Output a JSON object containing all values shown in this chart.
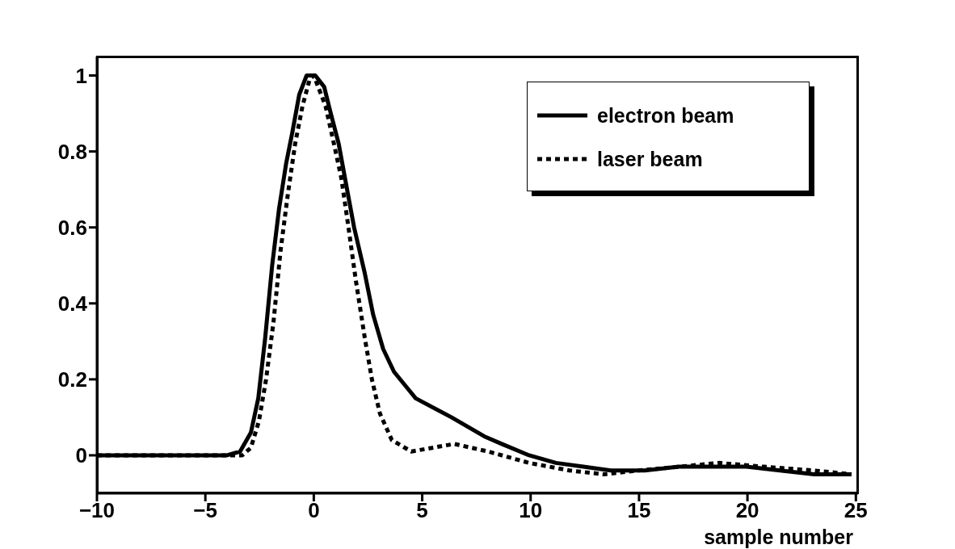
{
  "chart_data": {
    "type": "line",
    "xlabel": "sample number",
    "xlim": [
      -10,
      25.1
    ],
    "ylim": [
      -0.1,
      1.05
    ],
    "xticks": [
      {
        "value": -10,
        "label": "−10"
      },
      {
        "value": -5,
        "label": "−5"
      },
      0,
      5,
      10,
      15,
      20,
      25
    ],
    "yticks": [
      0,
      0.2,
      0.4,
      0.6,
      0.8,
      1
    ],
    "legend": "top right",
    "marker": "none",
    "series": [
      {
        "name": "electron beam",
        "color": "#000000",
        "line_style": "solid",
        "x": [
          -10,
          -8,
          -6,
          -4,
          -3.4,
          -2.9,
          -2.56,
          -2.24,
          -1.92,
          -1.6,
          -1.27,
          -0.99,
          -0.67,
          -0.33,
          0.07,
          0.48,
          0.74,
          1.15,
          1.47,
          1.86,
          2.35,
          2.74,
          3.2,
          3.7,
          4.7,
          6.35,
          7.86,
          8.67,
          9.93,
          11.17,
          12.43,
          13.7,
          15.26,
          16.83,
          18.7,
          19.95,
          21.5,
          23.08,
          24.8
        ],
        "values": [
          0,
          0,
          0,
          0,
          0.01,
          0.06,
          0.15,
          0.31,
          0.5,
          0.65,
          0.77,
          0.85,
          0.95,
          1,
          1,
          0.97,
          0.91,
          0.82,
          0.72,
          0.6,
          0.48,
          0.37,
          0.28,
          0.22,
          0.15,
          0.1,
          0.05,
          0.03,
          0,
          -0.02,
          -0.03,
          -0.04,
          -0.04,
          -0.03,
          -0.03,
          -0.03,
          -0.04,
          -0.05,
          -0.05
        ]
      },
      {
        "name": "laser beam",
        "color": "#000000",
        "line_style": "dotted",
        "x": [
          -10,
          -8,
          -6,
          -4,
          -3.3,
          -2.9,
          -2.53,
          -2.2,
          -1.86,
          -1.53,
          -1.19,
          -0.86,
          -0.52,
          -0.19,
          0,
          0.54,
          0.93,
          1.27,
          1.6,
          1.94,
          2.35,
          2.68,
          3.05,
          3.6,
          4.5,
          6.48,
          8.04,
          9.93,
          11.8,
          13.37,
          14.93,
          16.83,
          18.7,
          20.74,
          23.08,
          24.8
        ],
        "values": [
          0,
          0,
          0,
          0,
          0,
          0.02,
          0.09,
          0.2,
          0.35,
          0.54,
          0.69,
          0.82,
          0.92,
          0.99,
          1,
          0.92,
          0.82,
          0.73,
          0.6,
          0.46,
          0.31,
          0.2,
          0.11,
          0.04,
          0.01,
          0.03,
          0.01,
          -0.02,
          -0.04,
          -0.05,
          -0.04,
          -0.03,
          -0.02,
          -0.03,
          -0.04,
          -0.05
        ]
      }
    ]
  }
}
